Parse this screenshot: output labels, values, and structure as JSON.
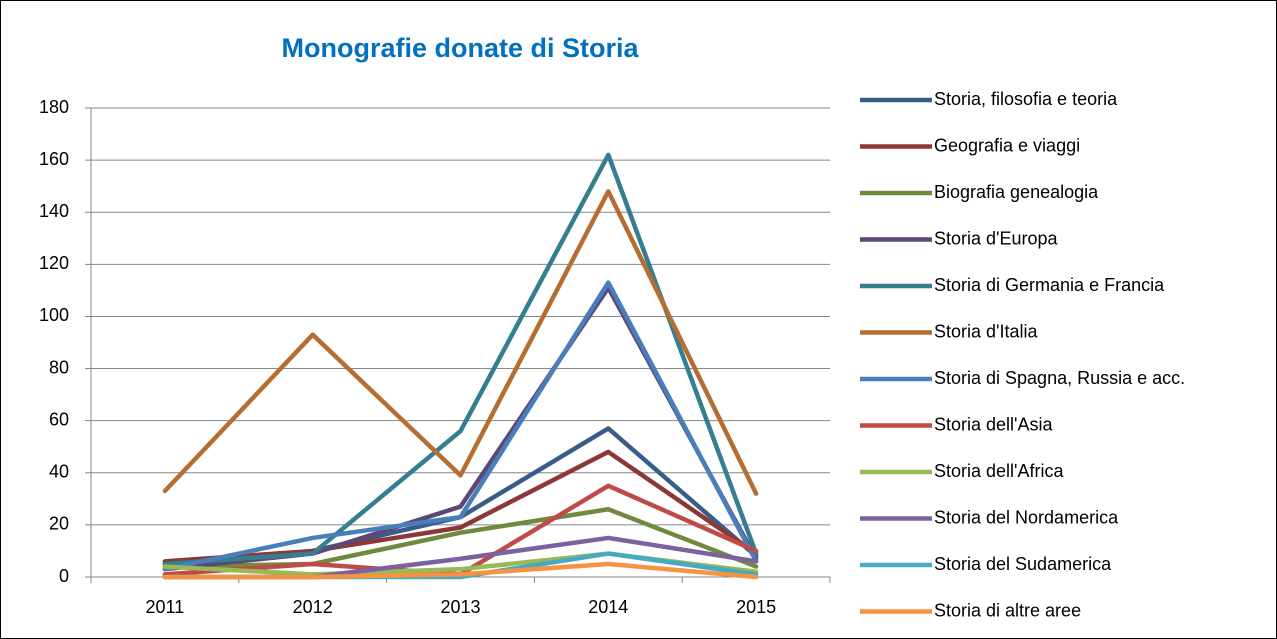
{
  "chart_data": {
    "type": "line",
    "title": "Monografie donate di Storia",
    "categories": [
      "2011",
      "2012",
      "2013",
      "2014",
      "2015"
    ],
    "ylim": [
      0,
      180
    ],
    "yticks": [
      0,
      20,
      40,
      60,
      80,
      100,
      120,
      140,
      160,
      180
    ],
    "grid": true,
    "legend": "right",
    "series": [
      {
        "name": "Storia, filosofia e teoria",
        "color": "#385d8a",
        "values": [
          5,
          10,
          23,
          57,
          8
        ]
      },
      {
        "name": "Geografia e viaggi",
        "color": "#8c3836",
        "values": [
          6,
          10,
          19,
          48,
          9
        ]
      },
      {
        "name": "Biografia genealogia",
        "color": "#71893f",
        "values": [
          4,
          5,
          17,
          26,
          4
        ]
      },
      {
        "name": "Storia d'Europa",
        "color": "#5c4776",
        "values": [
          3,
          9,
          27,
          111,
          7
        ]
      },
      {
        "name": "Storia di Germania e Francia",
        "color": "#357d91",
        "values": [
          5,
          9,
          56,
          162,
          9
        ]
      },
      {
        "name": "Storia d'Italia",
        "color": "#b66d31",
        "values": [
          33,
          93,
          39,
          148,
          32
        ]
      },
      {
        "name": "Storia di Spagna, Russia e acc.",
        "color": "#4a7ebb",
        "values": [
          3,
          15,
          23,
          113,
          6
        ]
      },
      {
        "name": "Storia dell'Asia",
        "color": "#be4b48",
        "values": [
          1,
          5,
          1,
          35,
          10
        ]
      },
      {
        "name": "Storia dell'Africa",
        "color": "#98b954",
        "values": [
          4,
          1,
          3,
          9,
          2
        ]
      },
      {
        "name": "Storia del Nordamerica",
        "color": "#7d60a0",
        "values": [
          0,
          0,
          7,
          15,
          6
        ]
      },
      {
        "name": "Storia del Sudamerica",
        "color": "#46aac5",
        "values": [
          0,
          0,
          0,
          9,
          1
        ]
      },
      {
        "name": "Storia di altre aree",
        "color": "#f69240",
        "values": [
          0,
          0,
          1,
          5,
          0
        ]
      }
    ]
  }
}
